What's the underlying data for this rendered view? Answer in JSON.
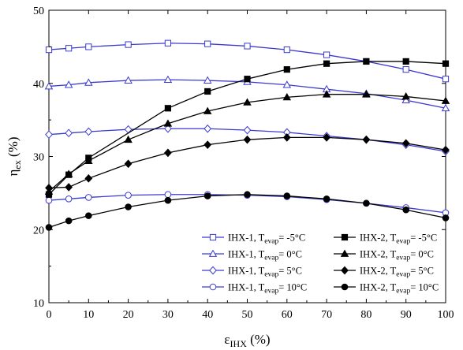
{
  "chart_data": {
    "type": "line",
    "xlabel": {
      "main": "ε",
      "sub": "IHX",
      "unit": " (%)"
    },
    "ylabel": {
      "main": "η",
      "sub": "ex",
      "unit": " (%)"
    },
    "xlim": [
      0,
      100
    ],
    "ylim": [
      10,
      50
    ],
    "xticks": [
      0,
      10,
      20,
      30,
      40,
      50,
      60,
      70,
      80,
      90,
      100
    ],
    "yticks": [
      10,
      20,
      30,
      40,
      50
    ],
    "grid": false,
    "legend_position": "bottom-right",
    "colors": {
      "ihx1": "#3a3ad0",
      "ihx2": "#000000"
    },
    "series": [
      {
        "name": "IHX-1, Tevap= -5°C",
        "prefix": "IHX-1, T",
        "sub": "evap",
        "suffix": "= -5°C",
        "group": "ihx1",
        "marker": "square",
        "x": [
          0,
          5,
          10,
          20,
          30,
          40,
          50,
          60,
          70,
          80,
          90,
          100
        ],
        "y": [
          44.6,
          44.8,
          45.0,
          45.3,
          45.5,
          45.4,
          45.1,
          44.6,
          43.9,
          43.0,
          41.9,
          40.6
        ]
      },
      {
        "name": "IHX-1, Tevap= 0°C",
        "prefix": "IHX-1, T",
        "sub": "evap",
        "suffix": "= 0°C",
        "group": "ihx1",
        "marker": "triangle",
        "x": [
          0,
          5,
          10,
          20,
          30,
          40,
          50,
          60,
          70,
          80,
          90,
          100
        ],
        "y": [
          39.6,
          39.8,
          40.1,
          40.4,
          40.5,
          40.4,
          40.2,
          39.8,
          39.2,
          38.6,
          37.7,
          36.6
        ]
      },
      {
        "name": "IHX-1, Tevap= 5°C",
        "prefix": "IHX-1, T",
        "sub": "evap",
        "suffix": "= 5°C",
        "group": "ihx1",
        "marker": "diamond",
        "x": [
          0,
          5,
          10,
          20,
          30,
          40,
          50,
          60,
          70,
          80,
          90,
          100
        ],
        "y": [
          33.0,
          33.2,
          33.4,
          33.7,
          33.8,
          33.8,
          33.6,
          33.3,
          32.8,
          32.3,
          31.6,
          30.7
        ]
      },
      {
        "name": "IHX-1, Tevap= 10°C",
        "prefix": "IHX-1, T",
        "sub": "evap",
        "suffix": "= 10°C",
        "group": "ihx1",
        "marker": "circle",
        "x": [
          0,
          5,
          10,
          20,
          30,
          40,
          50,
          60,
          70,
          80,
          90,
          100
        ],
        "y": [
          24.0,
          24.2,
          24.4,
          24.7,
          24.8,
          24.8,
          24.7,
          24.5,
          24.1,
          23.6,
          23.0,
          22.3
        ]
      },
      {
        "name": "IHX-2, Tevap= -5°C",
        "prefix": "IHX-2, T",
        "sub": "evap",
        "suffix": "= -5°C",
        "group": "ihx2",
        "marker": "square",
        "x": [
          0,
          5,
          10,
          30,
          40,
          50,
          60,
          70,
          80,
          90,
          100
        ],
        "y": [
          24.8,
          27.5,
          29.8,
          36.6,
          38.9,
          40.6,
          41.9,
          42.7,
          43.0,
          43.0,
          42.7
        ]
      },
      {
        "name": "IHX-2, Tevap= 0°C",
        "prefix": "IHX-2, T",
        "sub": "evap",
        "suffix": "= 0°C",
        "group": "ihx2",
        "marker": "triangle",
        "x": [
          0,
          5,
          10,
          20,
          30,
          40,
          50,
          60,
          70,
          80,
          90,
          100
        ],
        "y": [
          25.2,
          27.6,
          29.4,
          32.3,
          34.5,
          36.2,
          37.4,
          38.1,
          38.5,
          38.5,
          38.2,
          37.6
        ]
      },
      {
        "name": "IHX-2, Tevap= 5°C",
        "prefix": "IHX-2, T",
        "sub": "evap",
        "suffix": "= 5°C",
        "group": "ihx2",
        "marker": "diamond",
        "x": [
          0,
          5,
          10,
          20,
          30,
          40,
          50,
          60,
          70,
          80,
          90,
          100
        ],
        "y": [
          25.7,
          25.8,
          27.0,
          29.0,
          30.5,
          31.6,
          32.3,
          32.6,
          32.6,
          32.3,
          31.8,
          30.9
        ]
      },
      {
        "name": "IHX-2, Tevap= 10°C",
        "prefix": "IHX-2, T",
        "sub": "evap",
        "suffix": "= 10°C",
        "group": "ihx2",
        "marker": "circle",
        "x": [
          0,
          5,
          10,
          20,
          30,
          40,
          50,
          60,
          70,
          80,
          90,
          100
        ],
        "y": [
          20.3,
          21.2,
          21.9,
          23.1,
          24.0,
          24.6,
          24.8,
          24.6,
          24.2,
          23.6,
          22.7,
          21.6
        ]
      }
    ]
  }
}
